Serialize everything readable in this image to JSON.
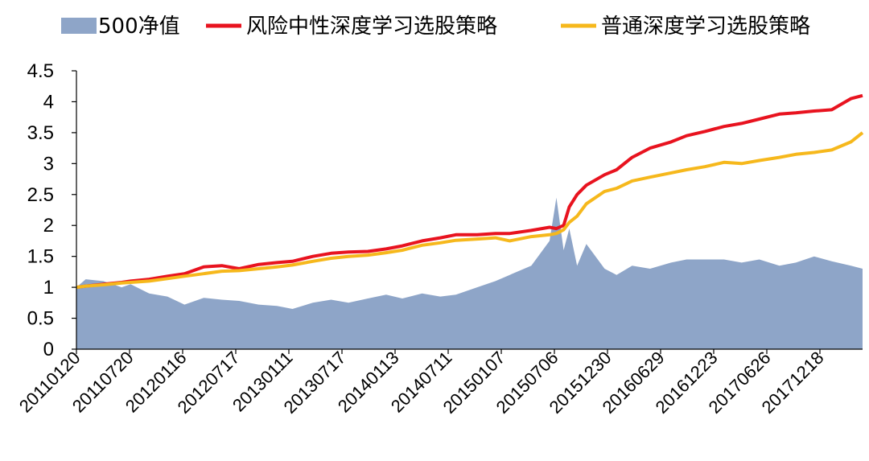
{
  "chart_data": {
    "type": "line",
    "ylim": [
      0,
      4.5
    ],
    "yticks": [
      0,
      0.5,
      1,
      1.5,
      2,
      2.5,
      3,
      3.5,
      4,
      4.5
    ],
    "ytick_labels": [
      "0",
      "0.5",
      "1",
      "1.5",
      "2",
      "2.5",
      "3",
      "3.5",
      "4",
      "4.5"
    ],
    "xtick_labels": [
      "20110120",
      "20110720",
      "20120116",
      "20120717",
      "20130111",
      "20130717",
      "20140113",
      "20140711",
      "20150107",
      "20150706",
      "20151230",
      "20160629",
      "20161223",
      "20170626",
      "20171218"
    ],
    "x": [
      "2011-01-20",
      "2011-02-20",
      "2011-04-20",
      "2011-06-20",
      "2011-07-20",
      "2011-09-20",
      "2011-11-20",
      "2012-01-16",
      "2012-03-20",
      "2012-05-20",
      "2012-07-17",
      "2012-09-20",
      "2012-11-20",
      "2013-01-11",
      "2013-03-20",
      "2013-05-20",
      "2013-07-17",
      "2013-09-20",
      "2013-11-20",
      "2014-01-13",
      "2014-03-20",
      "2014-05-20",
      "2014-07-11",
      "2014-09-20",
      "2014-11-20",
      "2015-01-07",
      "2015-03-20",
      "2015-05-20",
      "2015-06-12",
      "2015-07-06",
      "2015-07-25",
      "2015-08-20",
      "2015-09-20",
      "2015-11-20",
      "2015-12-30",
      "2016-02-20",
      "2016-04-20",
      "2016-06-29",
      "2016-08-20",
      "2016-10-20",
      "2016-12-23",
      "2017-02-20",
      "2017-04-20",
      "2017-06-26",
      "2017-08-20",
      "2017-10-20",
      "2017-12-18",
      "2018-02-20",
      "2018-03-31"
    ],
    "series": [
      {
        "name": "500净值",
        "kind": "area",
        "color": "#8EA5C8",
        "values": [
          1.0,
          1.13,
          1.1,
          1.0,
          1.05,
          0.9,
          0.85,
          0.72,
          0.83,
          0.8,
          0.78,
          0.72,
          0.7,
          0.65,
          0.75,
          0.8,
          0.75,
          0.82,
          0.88,
          0.82,
          0.9,
          0.85,
          0.88,
          1.0,
          1.1,
          1.2,
          1.35,
          1.75,
          2.45,
          1.6,
          1.95,
          1.35,
          1.7,
          1.3,
          1.2,
          1.35,
          1.3,
          1.4,
          1.45,
          1.45,
          1.45,
          1.4,
          1.45,
          1.35,
          1.4,
          1.5,
          1.42,
          1.35,
          1.3
        ]
      },
      {
        "name": "风险中性深度学习选股策略",
        "kind": "line",
        "color": "#E8131F",
        "values": [
          1.0,
          1.02,
          1.05,
          1.08,
          1.1,
          1.13,
          1.18,
          1.22,
          1.33,
          1.35,
          1.3,
          1.37,
          1.4,
          1.42,
          1.5,
          1.55,
          1.57,
          1.58,
          1.62,
          1.67,
          1.75,
          1.8,
          1.85,
          1.85,
          1.87,
          1.87,
          1.92,
          1.97,
          1.95,
          2.0,
          2.3,
          2.5,
          2.65,
          2.82,
          2.9,
          3.1,
          3.25,
          3.35,
          3.45,
          3.52,
          3.6,
          3.65,
          3.72,
          3.8,
          3.82,
          3.85,
          3.87,
          4.05,
          4.1
        ]
      },
      {
        "name": "普通深度学习选股策略",
        "kind": "line",
        "color": "#F6B81C",
        "values": [
          1.0,
          1.02,
          1.04,
          1.07,
          1.08,
          1.1,
          1.14,
          1.18,
          1.22,
          1.26,
          1.27,
          1.3,
          1.33,
          1.36,
          1.42,
          1.47,
          1.5,
          1.52,
          1.56,
          1.6,
          1.68,
          1.72,
          1.76,
          1.78,
          1.8,
          1.75,
          1.82,
          1.85,
          1.87,
          1.93,
          2.05,
          2.15,
          2.35,
          2.55,
          2.6,
          2.72,
          2.78,
          2.85,
          2.9,
          2.95,
          3.02,
          3.0,
          3.05,
          3.1,
          3.15,
          3.18,
          3.22,
          3.35,
          3.5
        ]
      }
    ],
    "legend_position": "top",
    "grid": false
  }
}
